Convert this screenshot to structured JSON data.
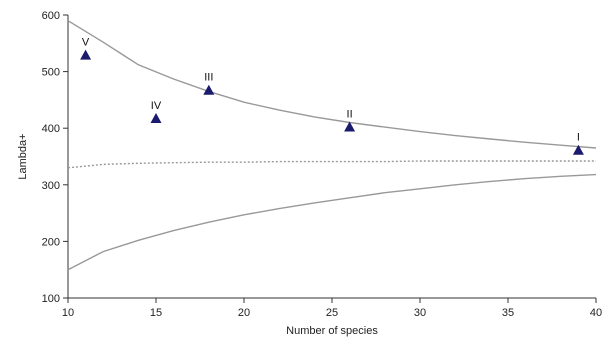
{
  "chart_data": {
    "type": "scatter",
    "xlabel": "Number of species",
    "ylabel": "Lambda+",
    "xlim": [
      10,
      40
    ],
    "ylim": [
      100,
      600
    ],
    "xticks": [
      10,
      15,
      20,
      25,
      30,
      35,
      40
    ],
    "yticks": [
      100,
      200,
      300,
      400,
      500,
      600
    ],
    "grid": false,
    "colors": {
      "points": "#1a1a6e",
      "curves": "#999999",
      "axis": "#333333"
    },
    "series": [
      {
        "values": [
          {
            "x": 39,
            "y": 362,
            "label": "I"
          },
          {
            "x": 26,
            "y": 403,
            "label": "II"
          },
          {
            "x": 18,
            "y": 468,
            "label": "III"
          },
          {
            "x": 15,
            "y": 418,
            "label": "IV"
          },
          {
            "x": 11,
            "y": 530,
            "label": "V"
          }
        ]
      },
      {
        "style": "solid",
        "x": [
          10,
          12,
          14,
          16,
          18,
          20,
          22,
          24,
          26,
          28,
          30,
          32,
          34,
          36,
          38,
          40
        ],
        "values": [
          590,
          552,
          512,
          487,
          465,
          446,
          432,
          420,
          410,
          402,
          394,
          387,
          381,
          375,
          370,
          365
        ]
      },
      {
        "style": "dotted",
        "x": [
          10,
          12,
          14,
          16,
          18,
          20,
          22,
          24,
          26,
          28,
          30,
          32,
          34,
          36,
          38,
          40
        ],
        "values": [
          330,
          336,
          338,
          339,
          340,
          340,
          341,
          341,
          341,
          341,
          342,
          342,
          342,
          342,
          342,
          342
        ]
      },
      {
        "style": "solid",
        "x": [
          10,
          12,
          14,
          16,
          18,
          20,
          22,
          24,
          26,
          28,
          30,
          32,
          34,
          36,
          38,
          40
        ],
        "values": [
          150,
          182,
          202,
          219,
          234,
          247,
          258,
          268,
          277,
          286,
          293,
          300,
          306,
          311,
          315,
          318
        ]
      }
    ]
  }
}
